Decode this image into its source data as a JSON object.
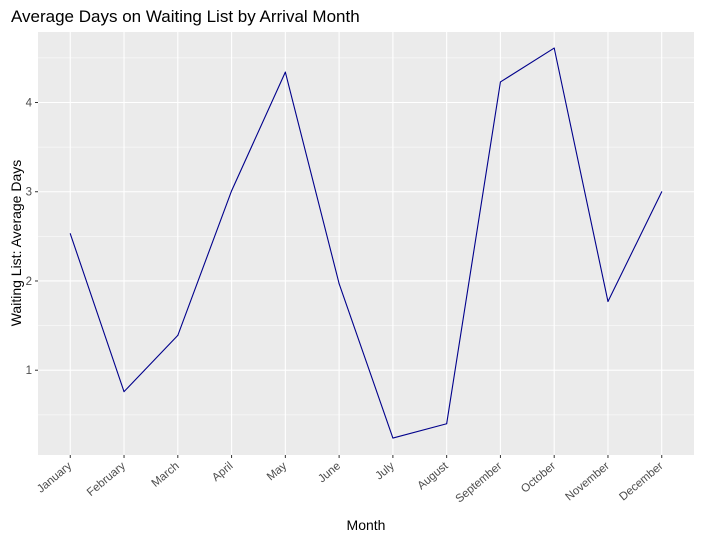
{
  "chart_data": {
    "type": "line",
    "title": "Average Days on Waiting List by Arrival Month",
    "xlabel": "Month",
    "ylabel": "Waiting List: Average Days",
    "categories": [
      "January",
      "February",
      "March",
      "April",
      "May",
      "June",
      "July",
      "August",
      "September",
      "October",
      "November",
      "December"
    ],
    "series": [
      {
        "values": [
          2.53,
          0.76,
          1.39,
          3.01,
          4.34,
          1.97,
          0.24,
          0.4,
          4.23,
          4.61,
          1.77,
          3.0
        ]
      }
    ],
    "ylim": [
      0.05,
      4.79
    ],
    "yticks": [
      1,
      2,
      3,
      4
    ],
    "grid": true,
    "legend": "none",
    "colors": {
      "line": "#00008b",
      "panel": "#ebebeb",
      "grid": "#ffffff"
    }
  }
}
